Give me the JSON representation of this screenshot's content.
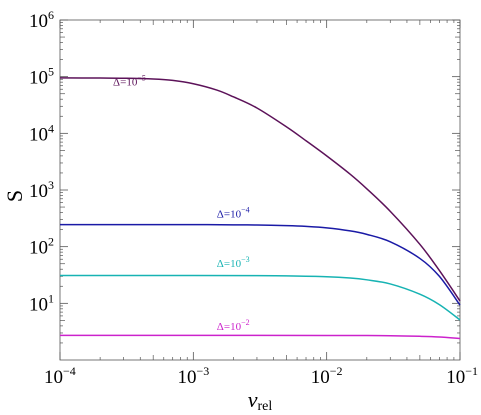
{
  "chart_data": {
    "type": "line",
    "xscale": "log",
    "yscale": "log",
    "xlim": [
      0.0001,
      0.1
    ],
    "ylim": [
      1,
      1000000
    ],
    "xlabel": {
      "base": "v",
      "subscript": "rel"
    },
    "ylabel": "S",
    "grid": false,
    "x_ticks": [
      {
        "value": 0.0001,
        "base": "10",
        "exp": "−4"
      },
      {
        "value": 0.001,
        "base": "10",
        "exp": "−3"
      },
      {
        "value": 0.01,
        "base": "10",
        "exp": "−2"
      },
      {
        "value": 0.1,
        "base": "10",
        "exp": "−1"
      }
    ],
    "y_ticks": [
      {
        "value": 10,
        "base": "10",
        "exp": "1"
      },
      {
        "value": 100,
        "base": "10",
        "exp": "2"
      },
      {
        "value": 1000,
        "base": "10",
        "exp": "3"
      },
      {
        "value": 10000,
        "base": "10",
        "exp": "4"
      },
      {
        "value": 100000,
        "base": "10",
        "exp": "5"
      },
      {
        "value": 1000000,
        "base": "10",
        "exp": "6"
      }
    ],
    "series": [
      {
        "label_base": "Δ=10",
        "label_exp": "−5",
        "label_at": [
          0.00025,
          70000
        ],
        "color": "#5c1259",
        "x": [
          0.0001,
          0.0002,
          0.0003,
          0.0005,
          0.0007,
          0.001,
          0.0015,
          0.002,
          0.003,
          0.005,
          0.007,
          0.01,
          0.015,
          0.02,
          0.03,
          0.05,
          0.07,
          0.1
        ],
        "y": [
          95000,
          94500,
          94000,
          91000,
          86000,
          75000,
          58000,
          44000,
          28000,
          13000,
          7400,
          4000,
          1900,
          1050,
          420,
          110,
          38,
          11
        ]
      },
      {
        "label_base": "Δ=10",
        "label_exp": "−4",
        "label_at": [
          0.0015,
          330
        ],
        "color": "#1a1aa6",
        "x": [
          0.0001,
          0.0005,
          0.001,
          0.002,
          0.003,
          0.005,
          0.007,
          0.01,
          0.015,
          0.02,
          0.03,
          0.05,
          0.07,
          0.1
        ],
        "y": [
          245,
          245,
          245,
          243,
          241,
          235,
          228,
          215,
          190,
          165,
          122,
          62,
          30,
          9.3
        ]
      },
      {
        "label_base": "Δ=10",
        "label_exp": "−3",
        "label_at": [
          0.0015,
          44
        ],
        "color": "#17b3b3",
        "x": [
          0.0001,
          0.001,
          0.003,
          0.005,
          0.01,
          0.015,
          0.02,
          0.03,
          0.05,
          0.07,
          0.1
        ],
        "y": [
          31,
          31,
          30.8,
          30.5,
          29.5,
          28,
          26,
          22,
          14.5,
          9.5,
          5.1
        ]
      },
      {
        "label_base": "Δ=10",
        "label_exp": "−2",
        "label_at": [
          0.0015,
          3.4
        ],
        "color": "#cc22cc",
        "x": [
          0.0001,
          0.001,
          0.01,
          0.02,
          0.03,
          0.05,
          0.07,
          0.1
        ],
        "y": [
          2.72,
          2.72,
          2.71,
          2.7,
          2.68,
          2.62,
          2.55,
          2.4
        ]
      }
    ]
  }
}
